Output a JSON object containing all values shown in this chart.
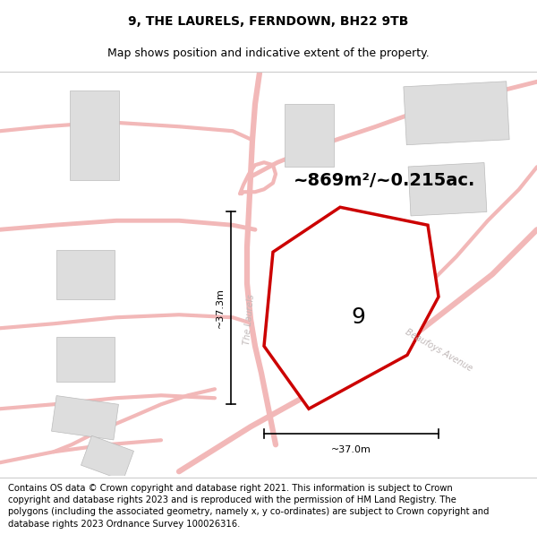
{
  "title_line1": "9, THE LAURELS, FERNDOWN, BH22 9TB",
  "title_line2": "Map shows position and indicative extent of the property.",
  "area_label": "~869m²/~0.215ac.",
  "number_label": "9",
  "dim_vertical": "~37.3m",
  "dim_horizontal": "~37.0m",
  "street_label_1": "The Laurels",
  "street_label_2": "Beaufoys Avenue",
  "footer_text": "Contains OS data © Crown copyright and database right 2021. This information is subject to Crown copyright and database rights 2023 and is reproduced with the permission of HM Land Registry. The polygons (including the associated geometry, namely x, y co-ordinates) are subject to Crown copyright and database rights 2023 Ordnance Survey 100026316.",
  "bg_color": "#ffffff",
  "map_bg": "#ffffff",
  "property_fill": "#ffffff",
  "property_edge": "#cc0000",
  "building_fill": "#dddddd",
  "road_color": "#f2b8b8",
  "dim_color": "#000000",
  "text_color": "#000000",
  "street_color": "#c0b8b8",
  "title_fontsize": 10,
  "subtitle_fontsize": 9,
  "area_fontsize": 14,
  "number_fontsize": 18,
  "footer_fontsize": 7.2
}
